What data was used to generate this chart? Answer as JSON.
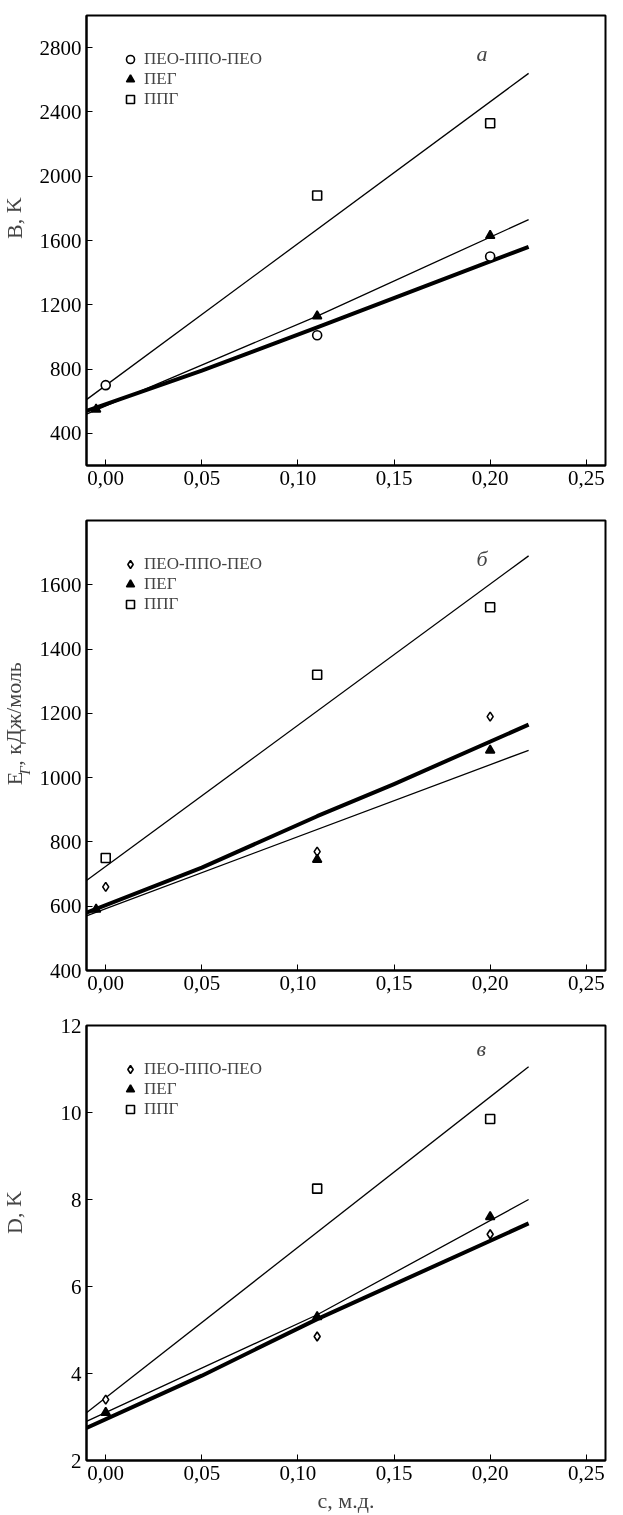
{
  "chart_data": [
    {
      "type": "scatter",
      "ylabel": "B, K",
      "annotations": [
        "a"
      ],
      "legend": "top left",
      "grid": false,
      "xlim": [
        -0.01,
        0.26
      ],
      "xticks": [
        {
          "value": 0,
          "label": "0,00"
        },
        {
          "value": 0.05,
          "label": "0,05"
        },
        {
          "value": 0.1,
          "label": "0,10"
        },
        {
          "value": 0.15,
          "label": "0,15"
        },
        {
          "value": 0.2,
          "label": "0,20"
        },
        {
          "value": 0.25,
          "label": "0,25"
        }
      ],
      "ylim": [
        200,
        3000
      ],
      "yticks": [
        400,
        800,
        1200,
        1600,
        2000,
        2400,
        2800
      ],
      "series": [
        {
          "type": "line",
          "color": "#000000",
          "line_style": "solid",
          "x": [
            -0.01,
            0.22
          ],
          "values": [
            610,
            2640
          ]
        },
        {
          "type": "line",
          "color": "#000000",
          "line_style": "solid",
          "x": [
            -0.01,
            0.11,
            0.22
          ],
          "values": [
            520,
            1130,
            1730
          ]
        },
        {
          "type": "line",
          "color": "#000000",
          "line_style": "solid",
          "x": [
            -0.01,
            0.05,
            0.11,
            0.2,
            0.22
          ],
          "values": [
            540,
            790,
            1060,
            1470,
            1560
          ]
        },
        {
          "type": "scatter",
          "name": "ПЕО-ППО-ПЕО",
          "marker": "circle",
          "color": "#000000",
          "x": [
            0,
            0.11,
            0.2
          ],
          "values": [
            700,
            1010,
            1500
          ]
        },
        {
          "type": "scatter",
          "name": "ПЕГ",
          "marker": "triangle",
          "color": "#000000",
          "x": [
            -0.005,
            0.11,
            0.2
          ],
          "values": [
            550,
            1130,
            1630
          ]
        },
        {
          "type": "scatter",
          "name": "ППГ",
          "marker": "square",
          "color": "#000000",
          "x": [
            0.11,
            0.2
          ],
          "values": [
            1880,
            2330
          ]
        }
      ]
    },
    {
      "type": "scatter",
      "ylabel": "E$_{Г}$, кДж/моль",
      "annotations": [
        "б"
      ],
      "legend": "top left",
      "grid": false,
      "xlim": [
        -0.01,
        0.26
      ],
      "xticks": [
        {
          "value": 0,
          "label": "0,00"
        },
        {
          "value": 0.05,
          "label": "0,05"
        },
        {
          "value": 0.1,
          "label": "0,10"
        },
        {
          "value": 0.15,
          "label": "0,15"
        },
        {
          "value": 0.2,
          "label": "0,20"
        },
        {
          "value": 0.25,
          "label": "0,25"
        }
      ],
      "ylim": [
        400,
        1800
      ],
      "yticks": [
        400,
        600,
        800,
        1000,
        1200,
        1400,
        1600
      ],
      "series": [
        {
          "type": "line",
          "color": "#000000",
          "line_style": "solid",
          "x": [
            -0.01,
            0.22
          ],
          "values": [
            680,
            1690
          ]
        },
        {
          "type": "line",
          "color": "#000000",
          "line_style": "solid",
          "x": [
            -0.01,
            0.22
          ],
          "values": [
            570,
            1085
          ]
        },
        {
          "type": "line",
          "color": "#000000",
          "line_style": "solid",
          "x": [
            -0.01,
            0.05,
            0.11,
            0.15,
            0.22
          ],
          "values": [
            580,
            720,
            880,
            980,
            1165
          ]
        },
        {
          "type": "scatter",
          "name": "ПЕО-ППО-ПЕО",
          "marker": "diamond",
          "color": "#000000",
          "x": [
            0,
            0.11,
            0.2
          ],
          "values": [
            660,
            770,
            1190
          ]
        },
        {
          "type": "scatter",
          "name": "ПЕГ",
          "marker": "triangle",
          "color": "#000000",
          "x": [
            -0.005,
            0.11,
            0.2
          ],
          "values": [
            590,
            745,
            1085
          ]
        },
        {
          "type": "scatter",
          "name": "ППГ",
          "marker": "square",
          "color": "#000000",
          "x": [
            0,
            0.11,
            0.2
          ],
          "values": [
            750,
            1320,
            1530
          ]
        }
      ]
    },
    {
      "type": "scatter",
      "xlabel": "c, м.д.",
      "ylabel": "D, K",
      "annotations": [
        "в"
      ],
      "legend": "top left",
      "grid": false,
      "xlim": [
        -0.01,
        0.26
      ],
      "xticks": [
        {
          "value": 0,
          "label": "0,00"
        },
        {
          "value": 0.05,
          "label": "0,05"
        },
        {
          "value": 0.1,
          "label": "0,10"
        },
        {
          "value": 0.15,
          "label": "0,15"
        },
        {
          "value": 0.2,
          "label": "0,20"
        },
        {
          "value": 0.25,
          "label": "0,25"
        }
      ],
      "ylim": [
        2,
        12
      ],
      "yticks": [
        2,
        4,
        6,
        8,
        10,
        12
      ],
      "series": [
        {
          "type": "line",
          "color": "#000000",
          "line_style": "solid",
          "x": [
            -0.01,
            0.22
          ],
          "values": [
            3.1,
            11.05
          ]
        },
        {
          "type": "line",
          "color": "#000000",
          "line_style": "solid",
          "x": [
            -0.01,
            0.11,
            0.22
          ],
          "values": [
            2.9,
            5.35,
            8.0
          ]
        },
        {
          "type": "line",
          "color": "#000000",
          "line_style": "solid",
          "x": [
            -0.01,
            0.05,
            0.11,
            0.22
          ],
          "values": [
            2.75,
            3.95,
            5.25,
            7.45
          ]
        },
        {
          "type": "scatter",
          "name": "ПЕО-ППО-ПЕО",
          "marker": "diamond",
          "color": "#000000",
          "x": [
            0,
            0.11,
            0.2
          ],
          "values": [
            3.4,
            4.85,
            7.2
          ]
        },
        {
          "type": "scatter",
          "name": "ПЕГ",
          "marker": "triangle",
          "color": "#000000",
          "x": [
            0,
            0.11,
            0.2
          ],
          "values": [
            3.1,
            5.3,
            7.6
          ]
        },
        {
          "type": "scatter",
          "name": "ППГ",
          "marker": "square",
          "color": "#000000",
          "x": [
            0.11,
            0.2
          ],
          "values": [
            8.25,
            9.85
          ]
        }
      ]
    }
  ]
}
